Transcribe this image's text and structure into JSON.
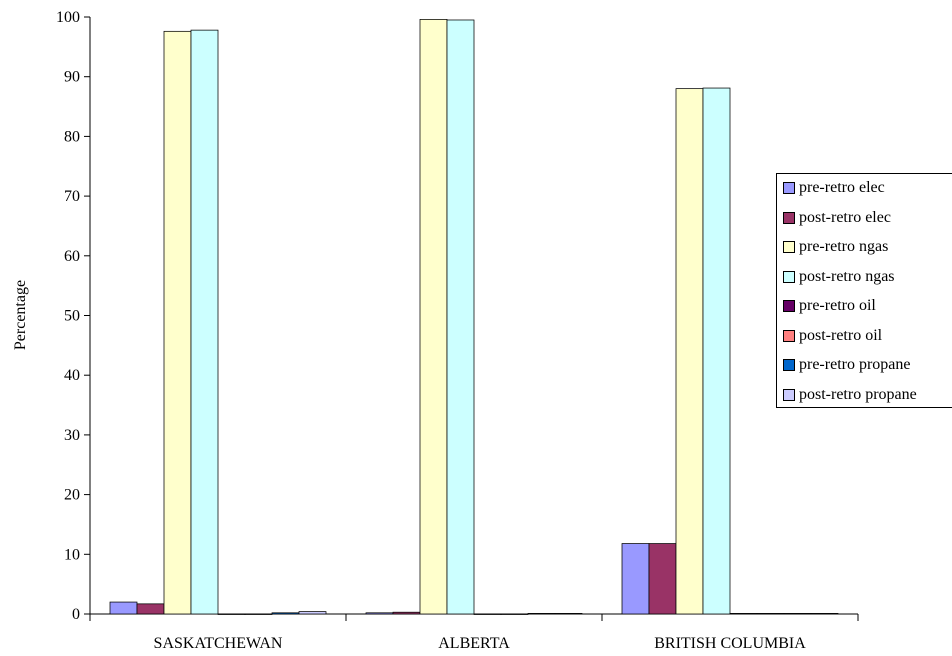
{
  "chart_data": {
    "type": "bar",
    "title": "",
    "xlabel": "",
    "ylabel": "Percentage",
    "ylim": [
      0,
      100
    ],
    "yticks": [
      0,
      10,
      20,
      30,
      40,
      50,
      60,
      70,
      80,
      90,
      100
    ],
    "grid": false,
    "legend_position": "right",
    "categories": [
      "SASKATCHEWAN",
      "ALBERTA",
      "BRITISH COLUMBIA"
    ],
    "series": [
      {
        "name": "pre-retro elec",
        "color": "#9999ff",
        "values": [
          2.0,
          0.2,
          11.8
        ]
      },
      {
        "name": "post-retro elec",
        "color": "#993366",
        "values": [
          1.7,
          0.3,
          11.8
        ]
      },
      {
        "name": "pre-retro ngas",
        "color": "#ffffcc",
        "values": [
          97.6,
          99.6,
          88.0
        ]
      },
      {
        "name": "post-retro ngas",
        "color": "#ccffff",
        "values": [
          97.8,
          99.5,
          88.1
        ]
      },
      {
        "name": "pre-retro oil",
        "color": "#660066",
        "values": [
          0.0,
          0.0,
          0.1
        ]
      },
      {
        "name": "post-retro oil",
        "color": "#ff8080",
        "values": [
          0.0,
          0.0,
          0.1
        ]
      },
      {
        "name": "pre-retro propane",
        "color": "#0066cc",
        "values": [
          0.2,
          0.1,
          0.1
        ]
      },
      {
        "name": "post-retro propane",
        "color": "#ccccff",
        "values": [
          0.4,
          0.1,
          0.1
        ]
      }
    ]
  }
}
